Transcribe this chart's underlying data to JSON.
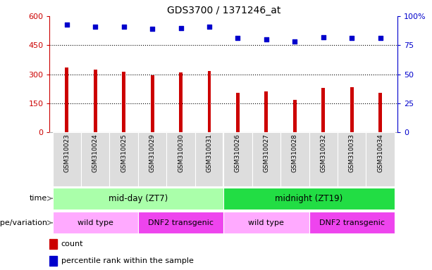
{
  "title": "GDS3700 / 1371246_at",
  "samples": [
    "GSM310023",
    "GSM310024",
    "GSM310025",
    "GSM310029",
    "GSM310030",
    "GSM310031",
    "GSM310026",
    "GSM310027",
    "GSM310028",
    "GSM310032",
    "GSM310033",
    "GSM310034"
  ],
  "counts": [
    335,
    323,
    312,
    296,
    308,
    318,
    205,
    213,
    168,
    228,
    232,
    205
  ],
  "percentiles": [
    93,
    91,
    91,
    89,
    90,
    91,
    81,
    80,
    78,
    82,
    81,
    81
  ],
  "ylim_left": [
    0,
    600
  ],
  "ylim_right": [
    0,
    100
  ],
  "yticks_left": [
    0,
    150,
    300,
    450,
    600
  ],
  "yticks_right": [
    0,
    25,
    50,
    75,
    100
  ],
  "bar_color": "#cc0000",
  "dot_color": "#0000cc",
  "time_labels": [
    {
      "text": "mid-day (ZT7)",
      "start": 0,
      "end": 6,
      "color": "#aaffaa"
    },
    {
      "text": "midnight (ZT19)",
      "start": 6,
      "end": 12,
      "color": "#22dd44"
    }
  ],
  "genotype_labels": [
    {
      "text": "wild type",
      "start": 0,
      "end": 3,
      "color": "#ffaaff"
    },
    {
      "text": "DNF2 transgenic",
      "start": 3,
      "end": 6,
      "color": "#ee44ee"
    },
    {
      "text": "wild type",
      "start": 6,
      "end": 9,
      "color": "#ffaaff"
    },
    {
      "text": "DNF2 transgenic",
      "start": 9,
      "end": 12,
      "color": "#ee44ee"
    }
  ],
  "time_row_label": "time",
  "genotype_row_label": "genotype/variation",
  "legend_count_label": "count",
  "legend_dot_label": "percentile rank within the sample",
  "tick_bg_color": "#dddddd"
}
